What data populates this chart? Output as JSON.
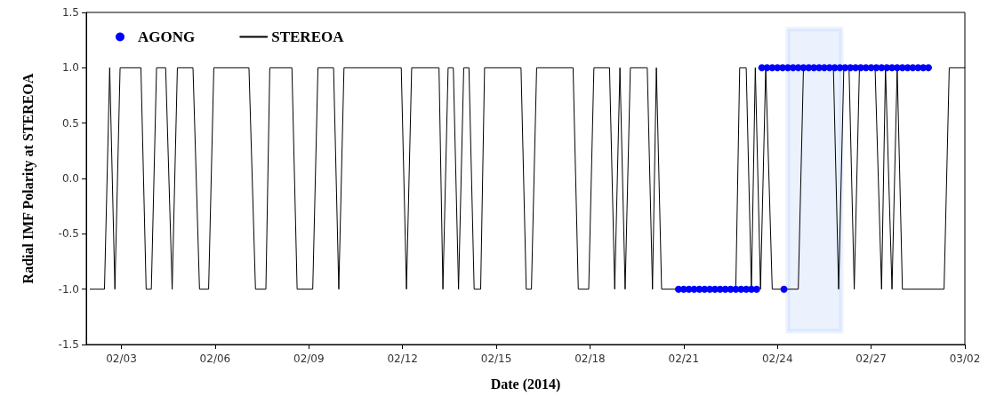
{
  "chart_data": {
    "type": "line",
    "xlabel": "Date (2014)",
    "ylabel": "Radial IMF Polarity at STEREOA",
    "xlim": [
      "2014-02-01T21:00",
      "2014-03-02"
    ],
    "xticks": [
      {
        "value": "2014-02-03",
        "label": "02/03"
      },
      {
        "value": "2014-02-06",
        "label": "02/06"
      },
      {
        "value": "2014-02-09",
        "label": "02/09"
      },
      {
        "value": "2014-02-12",
        "label": "02/12"
      },
      {
        "value": "2014-02-15",
        "label": "02/15"
      },
      {
        "value": "2014-02-18",
        "label": "02/18"
      },
      {
        "value": "2014-02-21",
        "label": "02/21"
      },
      {
        "value": "2014-02-24",
        "label": "02/24"
      },
      {
        "value": "2014-02-27",
        "label": "02/27"
      },
      {
        "value": "2014-03-02",
        "label": "03/02"
      }
    ],
    "ylim": [
      -1.5,
      1.5
    ],
    "yticks": [
      {
        "value": -1.5,
        "label": "-1.5"
      },
      {
        "value": -1,
        "label": "-1.0"
      },
      {
        "value": -0.5,
        "label": "-0.5"
      },
      {
        "value": 0,
        "label": "0.0"
      },
      {
        "value": 0.5,
        "label": "0.5"
      },
      {
        "value": 1,
        "label": "1.0"
      },
      {
        "value": 1.5,
        "label": "1.5"
      }
    ],
    "grid": false,
    "legend": "top left",
    "bands": [
      {
        "axis": "x",
        "from": "2014-02-24T08:00",
        "to": "2014-02-26T01:00",
        "color": "#78a8f8"
      }
    ],
    "series": [
      {
        "name": "AGONG",
        "type": "scatter",
        "marker": "circle",
        "color": "#0000ff",
        "x": [
          "2014-02-20T20:00",
          "2014-02-21T00:00",
          "2014-02-21T04:00",
          "2014-02-21T08:00",
          "2014-02-21T12:00",
          "2014-02-21T16:00",
          "2014-02-21T20:00",
          "2014-02-22T00:00",
          "2014-02-22T04:00",
          "2014-02-22T08:00",
          "2014-02-22T12:00",
          "2014-02-22T16:00",
          "2014-02-22T20:00",
          "2014-02-23T00:00",
          "2014-02-23T04:00",
          "2014-02-23T08:00",
          "2014-02-24T05:00",
          "2014-02-23T12:00",
          "2014-02-23T16:00",
          "2014-02-23T20:00",
          "2014-02-24T00:00",
          "2014-02-24T04:00",
          "2014-02-24T08:00",
          "2014-02-24T12:00",
          "2014-02-24T16:00",
          "2014-02-24T20:00",
          "2014-02-25T00:00",
          "2014-02-25T04:00",
          "2014-02-25T08:00",
          "2014-02-25T12:00",
          "2014-02-25T16:00",
          "2014-02-25T20:00",
          "2014-02-26T00:00",
          "2014-02-26T04:00",
          "2014-02-26T08:00",
          "2014-02-26T12:00",
          "2014-02-26T16:00",
          "2014-02-26T20:00",
          "2014-02-27T00:00",
          "2014-02-27T04:00",
          "2014-02-27T08:00",
          "2014-02-27T12:00",
          "2014-02-27T16:00",
          "2014-02-27T20:00",
          "2014-02-28T00:00",
          "2014-02-28T04:00",
          "2014-02-28T08:00",
          "2014-02-28T12:00",
          "2014-02-28T16:00",
          "2014-02-28T20:00"
        ],
        "values": [
          -1,
          -1,
          -1,
          -1,
          -1,
          -1,
          -1,
          -1,
          -1,
          -1,
          -1,
          -1,
          -1,
          -1,
          -1,
          -1,
          -1,
          1,
          1,
          1,
          1,
          1,
          1,
          1,
          1,
          1,
          1,
          1,
          1,
          1,
          1,
          1,
          1,
          1,
          1,
          1,
          1,
          1,
          1,
          1,
          1,
          1,
          1,
          1,
          1,
          1,
          1,
          1,
          1,
          1
        ]
      },
      {
        "name": "STEREOA",
        "type": "line",
        "marker": "none",
        "line_style": "solid",
        "color": "#000000",
        "x": [
          "2014-02-02T00:00",
          "2014-02-02T11:00",
          "2014-02-02T15:00",
          "2014-02-02T19:00",
          "2014-02-02T23:00",
          "2014-02-03T15:00",
          "2014-02-03T19:00",
          "2014-02-03T23:00",
          "2014-02-04T03:00",
          "2014-02-04T10:00",
          "2014-02-04T15:00",
          "2014-02-04T19:00",
          "2014-02-05T07:00",
          "2014-02-05T12:00",
          "2014-02-05T19:00",
          "2014-02-05T23:00",
          "2014-02-07T02:00",
          "2014-02-07T07:00",
          "2014-02-07T15:00",
          "2014-02-07T18:00",
          "2014-02-08T11:00",
          "2014-02-08T15:00",
          "2014-02-09T03:00",
          "2014-02-09T07:00",
          "2014-02-09T19:00",
          "2014-02-09T23:00",
          "2014-02-10T03:00",
          "2014-02-11T23:00",
          "2014-02-12T03:00",
          "2014-02-12T07:00",
          "2014-02-13T04:00",
          "2014-02-13T07:00",
          "2014-02-13T11:00",
          "2014-02-13T15:00",
          "2014-02-13T19:00",
          "2014-02-13T23:00",
          "2014-02-14T03:00",
          "2014-02-14T07:00",
          "2014-02-14T12:00",
          "2014-02-14T15:00",
          "2014-02-15T19:00",
          "2014-02-15T23:00",
          "2014-02-16T03:00",
          "2014-02-16T07:00",
          "2014-02-17T11:00",
          "2014-02-17T15:00",
          "2014-02-17T23:00",
          "2014-02-18T03:00",
          "2014-02-18T15:00",
          "2014-02-18T19:00",
          "2014-02-18T23:00",
          "2014-02-19T03:00",
          "2014-02-19T07:00",
          "2014-02-19T20:00",
          "2014-02-20T00:00",
          "2014-02-20T03:00",
          "2014-02-20T07:00",
          "2014-02-22T16:00",
          "2014-02-22T19:00",
          "2014-02-23T00:00",
          "2014-02-23T04:00",
          "2014-02-23T07:00",
          "2014-02-23T11:00",
          "2014-02-23T15:00",
          "2014-02-23T20:00",
          "2014-02-24T16:00",
          "2014-02-24T20:00",
          "2014-02-25T19:00",
          "2014-02-25T23:00",
          "2014-02-26T03:00",
          "2014-02-26T07:00",
          "2014-02-26T11:00",
          "2014-02-26T15:00",
          "2014-02-27T03:00",
          "2014-02-27T08:00",
          "2014-02-27T11:00",
          "2014-02-27T16:00",
          "2014-02-27T20:00",
          "2014-02-28T00:00",
          "2014-03-01T08:00",
          "2014-03-01T12:00",
          "2014-03-02"
        ],
        "values": [
          -1,
          -1,
          1,
          -1,
          1,
          1,
          -1,
          -1,
          1,
          1,
          -1,
          1,
          1,
          -1,
          -1,
          1,
          1,
          -1,
          -1,
          1,
          1,
          -1,
          -1,
          1,
          1,
          -1,
          1,
          1,
          -1,
          1,
          1,
          -1,
          1,
          1,
          -1,
          1,
          1,
          -1,
          -1,
          1,
          1,
          -1,
          -1,
          1,
          1,
          -1,
          -1,
          1,
          1,
          -1,
          1,
          -1,
          1,
          1,
          -1,
          1,
          -1,
          -1,
          1,
          1,
          -1,
          1,
          -1,
          1,
          -1,
          -1,
          1,
          1,
          -1,
          1,
          1,
          -1,
          1,
          1,
          -1,
          1,
          -1,
          1,
          -1,
          -1,
          1,
          1
        ]
      }
    ]
  }
}
